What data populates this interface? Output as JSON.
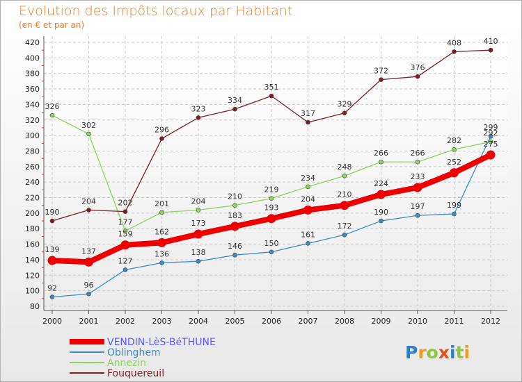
{
  "chart_data": {
    "type": "line",
    "title": "Evolution des Impôts locaux par Habitant",
    "subtitle": "(en € et par an)",
    "xlabel": "",
    "ylabel": "",
    "categories": [
      "2000",
      "2001",
      "2002",
      "2003",
      "2004",
      "2005",
      "2006",
      "2007",
      "2008",
      "2009",
      "2010",
      "2011",
      "2012"
    ],
    "ylim": [
      80,
      420
    ],
    "yticks": [
      80,
      100,
      120,
      140,
      160,
      180,
      200,
      220,
      240,
      260,
      280,
      300,
      320,
      340,
      360,
      380,
      400,
      420
    ],
    "grid": true,
    "legend_position": "bottom-left",
    "series": [
      {
        "name": "VENDIN-LèS-BéTHUNE",
        "color": "#ee0000",
        "legend_color": "#5a5aff",
        "emphasis": true,
        "values": [
          139,
          137,
          159,
          162,
          173,
          183,
          193,
          204,
          210,
          224,
          233,
          252,
          275
        ]
      },
      {
        "name": "Oblinghem",
        "color": "#3b8bc6",
        "legend_color": "#3b8bc6",
        "emphasis": false,
        "values": [
          92,
          96,
          127,
          136,
          138,
          146,
          150,
          161,
          172,
          190,
          197,
          199,
          299
        ]
      },
      {
        "name": "Annezin",
        "color": "#8fd45a",
        "legend_color": "#8fd45a",
        "emphasis": false,
        "values": [
          326,
          302,
          177,
          201,
          204,
          210,
          219,
          234,
          248,
          266,
          266,
          282,
          292
        ]
      },
      {
        "name": "Fouquereuil",
        "color": "#7a1e22",
        "legend_color": "#7a1e22",
        "emphasis": false,
        "values": [
          190,
          204,
          202,
          296,
          323,
          334,
          351,
          317,
          329,
          372,
          376,
          408,
          410
        ]
      }
    ]
  },
  "branding": {
    "logo_text": "Proxiti"
  }
}
